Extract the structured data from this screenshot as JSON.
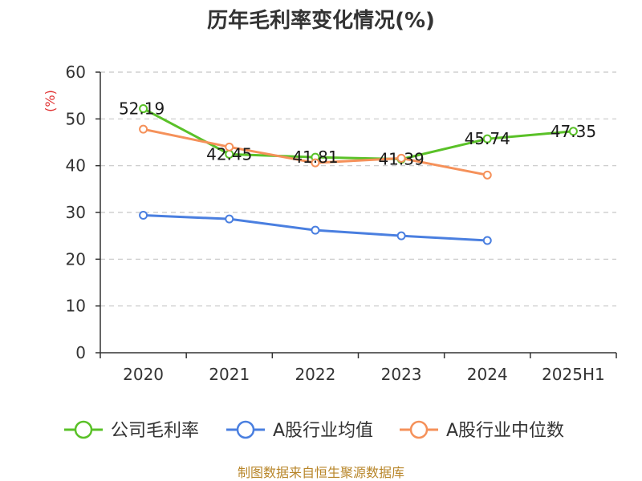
{
  "chart_data": {
    "type": "line",
    "title": "历年毛利率变化情况(%)",
    "ylabel": "(%)",
    "categories": [
      "2020",
      "2021",
      "2022",
      "2023",
      "2024",
      "2025H1"
    ],
    "ylim": [
      0,
      60
    ],
    "yticks": [
      "0",
      "10",
      "20",
      "30",
      "40",
      "50",
      "60"
    ],
    "grid": true,
    "legend_position": "bottom",
    "series": [
      {
        "name": "公司毛利率",
        "color": "#5ac128",
        "values": [
          52.19,
          42.45,
          41.81,
          41.39,
          45.74,
          47.35
        ],
        "labels": [
          "52.19",
          "42.45",
          "41.81",
          "41.39",
          "45.74",
          "47.35"
        ]
      },
      {
        "name": "A股行业均值",
        "color": "#4a7fe0",
        "values": [
          29.4,
          28.6,
          26.2,
          25.0,
          24.0,
          null
        ]
      },
      {
        "name": "A股行业中位数",
        "color": "#f5915a",
        "values": [
          47.8,
          44.0,
          40.6,
          41.6,
          38.0,
          null
        ]
      }
    ],
    "source": "制图数据来自恒生聚源数据库"
  }
}
